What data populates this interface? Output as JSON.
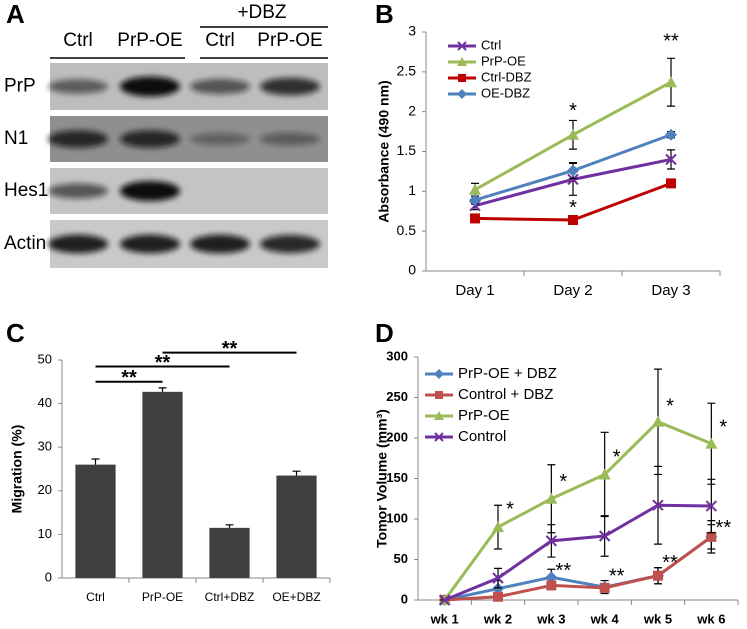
{
  "blot": {
    "panel_label": "A",
    "treatment": "+DBZ",
    "lanes": [
      "Ctrl",
      "PrP-OE",
      "Ctrl",
      "PrP-OE"
    ],
    "rows": [
      "PrP",
      "N1",
      "Hes1",
      "Actin"
    ]
  },
  "chart_data": [
    {
      "type": "line",
      "panel_label": "B",
      "y_label": "Absorbance (490 nm)",
      "categories": [
        "Day 1",
        "Day 2",
        "Day 3"
      ],
      "ylim": [
        0,
        3
      ],
      "yticks": [
        0,
        0.5,
        1,
        1.5,
        2,
        2.5,
        3
      ],
      "legend": "upper left",
      "series": [
        {
          "name": "Ctrl",
          "color": "#7030a0",
          "marker": "x",
          "values": [
            0.82,
            1.15,
            1.4
          ],
          "errors": [
            0.05,
            0.2,
            0.12
          ]
        },
        {
          "name": "PrP-OE",
          "color": "#9bbb59",
          "marker": "triangle",
          "values": [
            1.02,
            1.71,
            2.37
          ],
          "errors": [
            0.08,
            0.18,
            0.3
          ]
        },
        {
          "name": "Ctrl-DBZ",
          "color": "#c00000",
          "marker": "square",
          "values": [
            0.66,
            0.64,
            1.1
          ],
          "errors": [
            0.03,
            0.03,
            0.02
          ]
        },
        {
          "name": "OE-DBZ",
          "color": "#4f81bd",
          "marker": "diamond",
          "values": [
            0.89,
            1.26,
            1.71
          ],
          "errors": [
            0.05,
            0.1,
            0.04
          ]
        }
      ],
      "annotations": [
        {
          "text": "*",
          "x": 1,
          "y": 2.0
        },
        {
          "text": "*",
          "x": 1,
          "y": 0.78
        },
        {
          "text": "**",
          "x": 2,
          "y": 2.87
        }
      ]
    },
    {
      "type": "bar",
      "panel_label": "C",
      "y_label": "Migration (%)",
      "categories": [
        "Ctrl",
        "PrP-OE",
        "Ctrl+DBZ",
        "OE+DBZ"
      ],
      "values": [
        26,
        42.7,
        11.5,
        23.5
      ],
      "errors": [
        1.3,
        0.9,
        0.7,
        1.0
      ],
      "color": "#404040",
      "ylim": [
        0,
        50
      ],
      "yticks": [
        0,
        10,
        20,
        30,
        40,
        50
      ],
      "brackets": [
        {
          "from": 0,
          "to": 1,
          "y": 45,
          "text": "**"
        },
        {
          "from": 0,
          "to": 2,
          "y": 48.5,
          "text": "**"
        },
        {
          "from": 1,
          "to": 3,
          "y": 51.7,
          "text": "**"
        }
      ]
    },
    {
      "type": "line",
      "panel_label": "D",
      "y_label": "Tomor Volume (mm³)",
      "categories": [
        "wk 1",
        "wk 2",
        "wk 3",
        "wk 4",
        "wk 5",
        "wk 6"
      ],
      "ylim": [
        0,
        300
      ],
      "yticks": [
        0,
        50,
        100,
        150,
        200,
        250,
        300
      ],
      "legend": "upper left",
      "series": [
        {
          "name": "PrP-OE + DBZ",
          "color": "#4f81bd",
          "marker": "diamond",
          "values": [
            0,
            14,
            28,
            16,
            30,
            78
          ],
          "errors": [
            0,
            10,
            10,
            8,
            10,
            20
          ]
        },
        {
          "name": "Control + DBZ",
          "color": "#c0504d",
          "marker": "square",
          "values": [
            0,
            4,
            18,
            15,
            30,
            78
          ],
          "errors": [
            0,
            3,
            5,
            5,
            10,
            15
          ]
        },
        {
          "name": "PrP-OE",
          "color": "#9bbb59",
          "marker": "triangle",
          "values": [
            0,
            90,
            125,
            155,
            220,
            193
          ],
          "errors": [
            0,
            27,
            42,
            52,
            65,
            50
          ]
        },
        {
          "name": "Control",
          "color": "#7030a0",
          "marker": "x",
          "values": [
            0,
            27,
            73,
            79,
            117,
            116
          ],
          "errors": [
            0,
            12,
            20,
            25,
            48,
            33
          ]
        }
      ],
      "annotations": [
        {
          "text": "*",
          "x": 1,
          "y": 111
        },
        {
          "text": "*",
          "x": 2,
          "y": 145
        },
        {
          "text": "*",
          "x": 3,
          "y": 175
        },
        {
          "text": "*",
          "x": 4,
          "y": 238
        },
        {
          "text": "*",
          "x": 5,
          "y": 212
        },
        {
          "text": "**",
          "x": 2,
          "y": 35
        },
        {
          "text": "**",
          "x": 3,
          "y": 28
        },
        {
          "text": "**",
          "x": 4,
          "y": 45
        },
        {
          "text": "**",
          "x": 5,
          "y": 88
        }
      ]
    }
  ]
}
